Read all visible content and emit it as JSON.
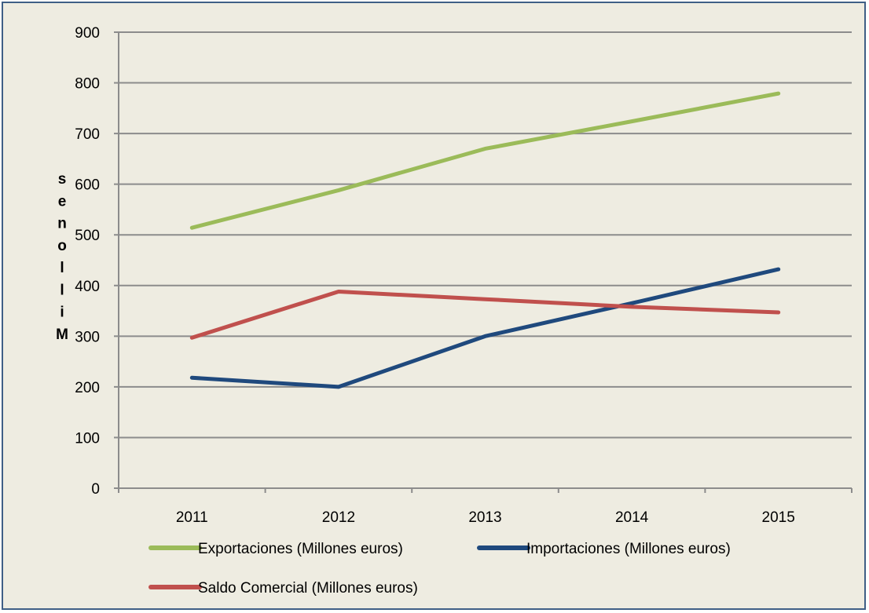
{
  "chart_data": {
    "type": "line",
    "title": "",
    "xlabel": "",
    "ylabel": "Millones",
    "categories": [
      "2011",
      "2012",
      "2013",
      "2014",
      "2015"
    ],
    "ylim": [
      0,
      900
    ],
    "yticks": [
      "0",
      "100",
      "200",
      "300",
      "400",
      "500",
      "600",
      "700",
      "800",
      "900"
    ],
    "grid": true,
    "legend_position": "bottom",
    "series": [
      {
        "name": "Exportaciones (Millones euros)",
        "color": "#9bbb59",
        "values": [
          514,
          588,
          670,
          724,
          779
        ]
      },
      {
        "name": "Importaciones (Millones euros)",
        "color": "#1f497d",
        "values": [
          218,
          200,
          300,
          365,
          432
        ]
      },
      {
        "name": "Saldo Comercial (Millones euros)",
        "color": "#c0504d",
        "values": [
          297,
          388,
          373,
          358,
          347
        ]
      }
    ]
  },
  "colors": {
    "background": "#eeece1",
    "border": "#3f5f86",
    "gridline": "#8c8c8c"
  }
}
